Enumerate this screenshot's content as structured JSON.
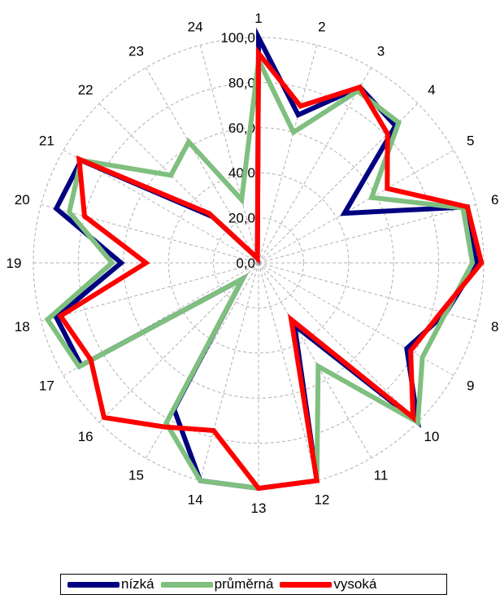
{
  "chart_data": {
    "type": "radar",
    "categories": [
      "1",
      "2",
      "3",
      "4",
      "5",
      "6",
      "7",
      "8",
      "9",
      "10",
      "11",
      "12",
      "13",
      "14",
      "15",
      "16",
      "17",
      "18",
      "19",
      "20",
      "21",
      "22",
      "23",
      "24"
    ],
    "radial_axis": {
      "range": [
        0,
        100
      ],
      "ticks": [
        0,
        20,
        40,
        60,
        80,
        100
      ],
      "tick_labels": [
        "0,0",
        "20,0",
        "40,0",
        "60,0",
        "80,0",
        "100,0"
      ]
    },
    "grid": "dashed",
    "legend_position": "bottom",
    "series": [
      {
        "name": "nízká",
        "color": "#000080",
        "values": [
          100,
          68,
          90,
          86,
          44,
          96,
          97,
          86,
          76,
          100,
          32,
          100,
          100,
          100,
          75,
          10,
          91,
          93,
          61,
          93,
          91,
          29,
          4,
          2
        ]
      },
      {
        "name": "průměrná",
        "color": "#7FBF7F",
        "values": [
          90,
          60,
          88,
          88,
          58,
          94,
          95,
          86,
          84,
          100,
          53,
          100,
          100,
          100,
          82,
          10,
          92,
          97,
          65,
          87,
          91,
          55,
          62,
          29
        ]
      },
      {
        "name": "vysoká",
        "color": "#FF0000",
        "values": [
          93,
          72,
          90,
          81,
          66,
          96,
          99,
          84,
          78,
          97,
          29,
          100,
          100,
          77,
          84,
          97,
          86,
          91,
          50,
          80,
          92,
          31,
          4,
          2
        ]
      }
    ]
  }
}
